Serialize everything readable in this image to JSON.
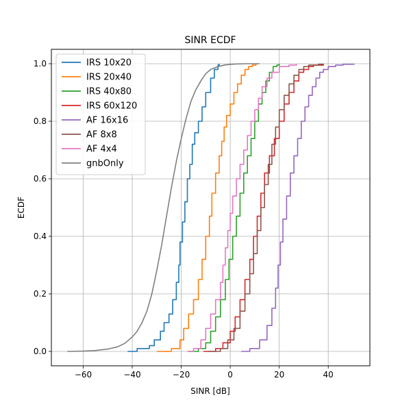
{
  "chart_data": {
    "type": "line",
    "title": "SINR ECDF",
    "xlabel": "SINR [dB]",
    "ylabel": "ECDF",
    "xlim": [
      -73,
      57
    ],
    "ylim": [
      -0.05,
      1.05
    ],
    "xticks": [
      -60,
      -40,
      -20,
      0,
      20,
      40
    ],
    "xtick_labels": [
      "−60",
      "−40",
      "−20",
      "0",
      "20",
      "40"
    ],
    "yticks": [
      0.0,
      0.2,
      0.4,
      0.6,
      0.8,
      1.0
    ],
    "ytick_labels": [
      "0.0",
      "0.2",
      "0.4",
      "0.6",
      "0.8",
      "1.0"
    ],
    "grid": true,
    "legend_position": "top-left",
    "series": [
      {
        "name": "IRS 10x20",
        "color": "#1f77b4",
        "step": true,
        "x": [
          -41.9,
          -38,
          -33,
          -31,
          -28.5,
          -27,
          -25,
          -23.5,
          -22,
          -21,
          -20.5,
          -19.5,
          -18.5,
          -17.5,
          -16.5,
          -15.5,
          -14.5,
          -13,
          -11.5,
          -10,
          -8,
          -6.5,
          -5,
          -4.5
        ],
        "y": [
          0.0,
          0.01,
          0.02,
          0.04,
          0.07,
          0.1,
          0.13,
          0.18,
          0.24,
          0.3,
          0.38,
          0.45,
          0.52,
          0.6,
          0.65,
          0.72,
          0.76,
          0.8,
          0.85,
          0.9,
          0.95,
          0.98,
          0.995,
          1.0
        ]
      },
      {
        "name": "IRS 20x40",
        "color": "#ff7f0e",
        "step": true,
        "x": [
          -29.9,
          -24,
          -20.5,
          -19,
          -17,
          -15,
          -13,
          -11.5,
          -10,
          -8.5,
          -7.5,
          -6,
          -4.5,
          -3.5,
          -2.5,
          -1.5,
          0,
          1.5,
          3,
          4.5,
          6,
          7.5,
          9,
          10.5
        ],
        "y": [
          0.0,
          0.01,
          0.04,
          0.08,
          0.13,
          0.18,
          0.25,
          0.32,
          0.4,
          0.47,
          0.55,
          0.62,
          0.68,
          0.73,
          0.78,
          0.82,
          0.86,
          0.9,
          0.93,
          0.96,
          0.98,
          0.99,
          0.995,
          1.0
        ]
      },
      {
        "name": "IRS 40x80",
        "color": "#2ca02c",
        "step": true,
        "x": [
          -17,
          -13,
          -10,
          -8,
          -6,
          -4,
          -2,
          -0.5,
          1,
          2.5,
          4,
          5.5,
          7,
          8.5,
          10,
          11.5,
          13,
          14.5,
          16,
          17.5,
          19,
          20
        ],
        "y": [
          0.0,
          0.01,
          0.03,
          0.07,
          0.12,
          0.18,
          0.25,
          0.32,
          0.4,
          0.47,
          0.55,
          0.62,
          0.68,
          0.74,
          0.8,
          0.86,
          0.9,
          0.94,
          0.97,
          0.99,
          0.995,
          1.0
        ]
      },
      {
        "name": "IRS 60x120",
        "color": "#d62728",
        "step": true,
        "x": [
          -11,
          -6,
          -3,
          0,
          2,
          4,
          6,
          8,
          9.5,
          11,
          12.5,
          14,
          16,
          18,
          20,
          22,
          24,
          26,
          28,
          30,
          32,
          34,
          38
        ],
        "y": [
          0.0,
          0.01,
          0.03,
          0.07,
          0.12,
          0.18,
          0.25,
          0.32,
          0.4,
          0.47,
          0.55,
          0.62,
          0.68,
          0.74,
          0.8,
          0.86,
          0.9,
          0.94,
          0.97,
          0.98,
          0.99,
          0.995,
          1.0
        ]
      },
      {
        "name": "AF 16x16",
        "color": "#9467bd",
        "step": true,
        "x": [
          4.5,
          8,
          12,
          15,
          17,
          18.5,
          19.5,
          20.5,
          21.5,
          23,
          24.5,
          26,
          27.5,
          29,
          30.5,
          32,
          33.5,
          35,
          36.5,
          38,
          40,
          43,
          46,
          50.5
        ],
        "y": [
          0.0,
          0.01,
          0.04,
          0.09,
          0.15,
          0.22,
          0.3,
          0.38,
          0.46,
          0.54,
          0.62,
          0.68,
          0.74,
          0.8,
          0.85,
          0.89,
          0.92,
          0.95,
          0.97,
          0.98,
          0.99,
          0.995,
          0.998,
          1.0
        ]
      },
      {
        "name": "AF 8x8",
        "color": "#8c564b",
        "step": true,
        "x": [
          -9,
          -4,
          -1,
          1.5,
          4,
          6,
          8,
          9.5,
          11,
          12.5,
          14,
          15.5,
          17,
          18.5,
          20,
          22,
          24,
          26,
          28,
          30,
          32,
          36,
          38
        ],
        "y": [
          0.0,
          0.01,
          0.04,
          0.08,
          0.14,
          0.2,
          0.27,
          0.34,
          0.42,
          0.5,
          0.58,
          0.65,
          0.72,
          0.78,
          0.84,
          0.89,
          0.93,
          0.96,
          0.98,
          0.99,
          0.995,
          0.998,
          1.0
        ]
      },
      {
        "name": "AF 4x4",
        "color": "#e377c2",
        "step": true,
        "x": [
          -17.5,
          -15,
          -12,
          -10,
          -8,
          -6,
          -4,
          -3,
          -2,
          -1,
          0,
          1,
          2.5,
          4,
          5.5,
          7,
          8.5,
          10,
          11.5,
          13,
          15,
          17,
          20,
          24,
          27
        ],
        "y": [
          0.0,
          0.01,
          0.04,
          0.08,
          0.13,
          0.18,
          0.24,
          0.3,
          0.36,
          0.42,
          0.48,
          0.54,
          0.6,
          0.65,
          0.7,
          0.75,
          0.8,
          0.84,
          0.88,
          0.92,
          0.95,
          0.97,
          0.99,
          0.995,
          1.0
        ]
      },
      {
        "name": "gnbOnly",
        "color": "#7f7f7f",
        "step": false,
        "x": [
          -66.5,
          -60,
          -55,
          -50,
          -46,
          -43,
          -40,
          -38,
          -36,
          -34,
          -32,
          -30,
          -28,
          -26,
          -24,
          -22,
          -20,
          -18,
          -16,
          -14,
          -12,
          -10,
          -8,
          -5,
          -2,
          2,
          7,
          12
        ],
        "y": [
          0.0,
          0.001,
          0.003,
          0.008,
          0.016,
          0.028,
          0.05,
          0.07,
          0.1,
          0.14,
          0.2,
          0.28,
          0.37,
          0.47,
          0.57,
          0.66,
          0.74,
          0.81,
          0.87,
          0.91,
          0.94,
          0.965,
          0.98,
          0.99,
          0.996,
          0.999,
          1.0,
          1.0
        ]
      }
    ]
  }
}
